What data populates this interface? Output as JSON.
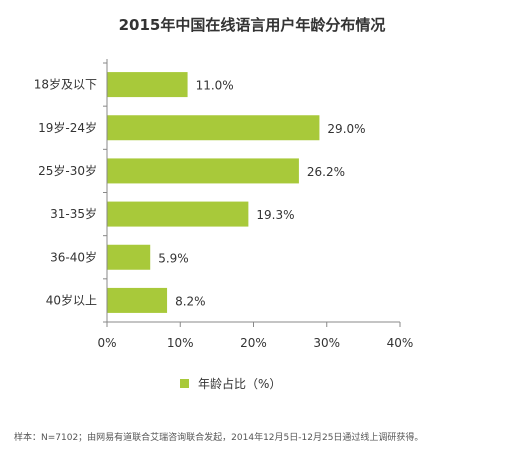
{
  "chart_data": {
    "type": "bar",
    "orientation": "horizontal",
    "title": "2015年中国在线语言用户年龄分布情况",
    "categories": [
      "18岁及以下",
      "19岁-24岁",
      "25岁-30岁",
      "31-35岁",
      "36-40岁",
      "40岁以上"
    ],
    "series": [
      {
        "name": "年龄占比（%）",
        "values": [
          11.0,
          29.0,
          26.2,
          19.3,
          5.9,
          8.2
        ],
        "value_labels": [
          "11.0%",
          "29.0%",
          "26.2%",
          "19.3%",
          "5.9%",
          "8.2%"
        ]
      }
    ],
    "xlim": [
      0,
      40
    ],
    "xticks": [
      0,
      10,
      20,
      30,
      40
    ],
    "xtick_labels": [
      "0%",
      "10%",
      "20%",
      "30%",
      "40%"
    ],
    "xlabel": "",
    "ylabel": "",
    "grid": false,
    "legend_position": "bottom",
    "bar_color": "#a8c93a",
    "axis_color": "#888888",
    "footnote": "样本：N=7102；由网易有道联合艾瑞咨询联合发起，2014年12月5日-12月25日通过线上调研获得。"
  }
}
